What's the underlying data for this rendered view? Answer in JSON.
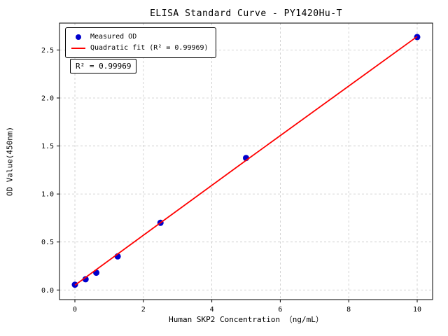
{
  "chart_data": {
    "type": "scatter",
    "title": "ELISA Standard Curve - PY1420Hu-T",
    "xlabel": "Human SKP2 Concentration （ng/mL）",
    "ylabel": "OD Value(450nm)",
    "xlim": [
      -0.45,
      10.45
    ],
    "ylim": [
      -0.1,
      2.78
    ],
    "x_ticks": [
      0,
      2,
      4,
      6,
      8,
      10
    ],
    "x_tick_labels": [
      "0",
      "2",
      "4",
      "6",
      "8",
      "10"
    ],
    "y_ticks": [
      0.0,
      0.5,
      1.0,
      1.5,
      2.0,
      2.5
    ],
    "y_tick_labels": [
      "0.0",
      "0.5",
      "1.0",
      "1.5",
      "2.0",
      "2.5"
    ],
    "grid": true,
    "grid_style": "dashed",
    "legend_position": "upper-left",
    "series": [
      {
        "name": "Measured OD",
        "type": "scatter",
        "color": "#0000cd",
        "x": [
          0,
          0.3125,
          0.625,
          1.25,
          2.5,
          5,
          10
        ],
        "y": [
          0.055,
          0.112,
          0.18,
          0.35,
          0.7,
          1.375,
          2.635
        ]
      },
      {
        "name": "Quadratic fit (R² = 0.99969)",
        "type": "line",
        "color": "#ff0000",
        "x": [
          0,
          2.5,
          5,
          10
        ],
        "y": [
          0.05,
          0.7,
          1.35,
          2.64
        ]
      }
    ],
    "annotation": "R² = 0.99969",
    "colors": {
      "points": "#0000cd",
      "fit_line": "#ff0000",
      "grid": "#c8c8c8",
      "frame": "#000000"
    }
  }
}
